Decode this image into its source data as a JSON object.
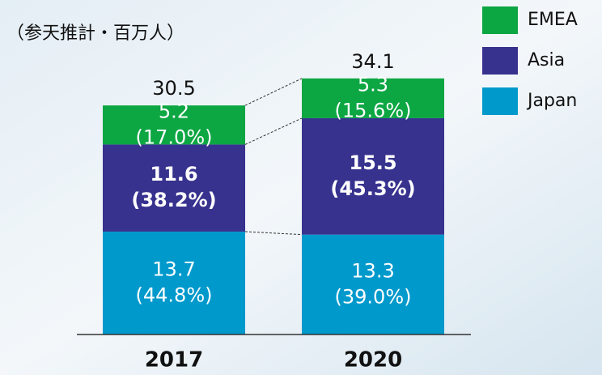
{
  "chart_data": {
    "type": "stacked_bar",
    "subtitle": "（参天推計・百万人）",
    "categories": [
      "2017",
      "2020"
    ],
    "series": [
      {
        "name": "Japan",
        "color": "#0099cc",
        "values": [
          13.7,
          13.3
        ],
        "share_labels": [
          "(44.8%)",
          "(39.0%)"
        ],
        "bold": false
      },
      {
        "name": "Asia",
        "color": "#37328e",
        "values": [
          11.6,
          15.5
        ],
        "share_labels": [
          "(38.2%)",
          "(45.3%)"
        ],
        "bold": true
      },
      {
        "name": "EMEA",
        "color": "#0ca643",
        "values": [
          5.2,
          5.3
        ],
        "share_labels": [
          "(17.0%)",
          "(15.6%)"
        ],
        "bold": false
      }
    ],
    "totals": [
      30.5,
      34.1
    ],
    "ylim": [
      0,
      44
    ]
  }
}
